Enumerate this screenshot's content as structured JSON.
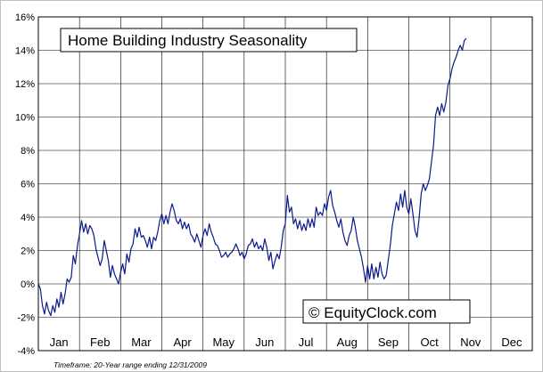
{
  "chart_data": {
    "type": "line",
    "title": "Home Building Industry Seasonality",
    "watermark": "© EquityClock.com",
    "footnote": "Timeframe: 20-Year range ending 12/31/2009",
    "xlabel": "",
    "ylabel": "",
    "ylim": [
      -4,
      16
    ],
    "y_ticks": [
      "-4%",
      "-2%",
      "0%",
      "2%",
      "4%",
      "6%",
      "8%",
      "10%",
      "12%",
      "14%",
      "16%"
    ],
    "x_ticks": [
      "Jan",
      "Feb",
      "Mar",
      "Apr",
      "May",
      "Jun",
      "Jul",
      "Aug",
      "Sep",
      "Oct",
      "Nov",
      "Dec"
    ],
    "grid": true,
    "line_color": "#0a1a8c",
    "series": [
      {
        "values": [
          [
            0.0,
            0.0
          ],
          [
            0.05,
            -0.3
          ],
          [
            0.1,
            -1.3
          ],
          [
            0.15,
            -1.8
          ],
          [
            0.2,
            -1.1
          ],
          [
            0.25,
            -1.6
          ],
          [
            0.3,
            -1.9
          ],
          [
            0.35,
            -1.3
          ],
          [
            0.4,
            -1.7
          ],
          [
            0.45,
            -0.9
          ],
          [
            0.5,
            -1.4
          ],
          [
            0.55,
            -0.5
          ],
          [
            0.6,
            -1.2
          ],
          [
            0.65,
            -0.6
          ],
          [
            0.7,
            0.3
          ],
          [
            0.75,
            0.1
          ],
          [
            0.8,
            0.4
          ],
          [
            0.85,
            1.7
          ],
          [
            0.9,
            1.2
          ],
          [
            0.95,
            2.3
          ],
          [
            1.0,
            3.0
          ],
          [
            1.05,
            3.8
          ],
          [
            1.1,
            3.1
          ],
          [
            1.15,
            3.6
          ],
          [
            1.2,
            3.0
          ],
          [
            1.25,
            3.5
          ],
          [
            1.3,
            3.3
          ],
          [
            1.35,
            2.9
          ],
          [
            1.4,
            2.1
          ],
          [
            1.45,
            1.6
          ],
          [
            1.5,
            1.1
          ],
          [
            1.55,
            1.5
          ],
          [
            1.6,
            2.6
          ],
          [
            1.65,
            2.0
          ],
          [
            1.7,
            1.4
          ],
          [
            1.75,
            0.4
          ],
          [
            1.8,
            1.1
          ],
          [
            1.85,
            0.6
          ],
          [
            1.9,
            0.3
          ],
          [
            1.95,
            0.0
          ],
          [
            2.0,
            0.7
          ],
          [
            2.05,
            1.2
          ],
          [
            2.1,
            0.6
          ],
          [
            2.15,
            1.8
          ],
          [
            2.2,
            1.3
          ],
          [
            2.25,
            2.1
          ],
          [
            2.3,
            2.4
          ],
          [
            2.35,
            3.3
          ],
          [
            2.4,
            2.8
          ],
          [
            2.45,
            3.4
          ],
          [
            2.5,
            2.8
          ],
          [
            2.55,
            2.9
          ],
          [
            2.6,
            2.6
          ],
          [
            2.65,
            2.2
          ],
          [
            2.7,
            2.8
          ],
          [
            2.75,
            2.1
          ],
          [
            2.8,
            2.8
          ],
          [
            2.85,
            2.6
          ],
          [
            2.9,
            3.1
          ],
          [
            2.95,
            3.8
          ],
          [
            3.0,
            4.2
          ],
          [
            3.05,
            3.6
          ],
          [
            3.1,
            4.1
          ],
          [
            3.15,
            3.6
          ],
          [
            3.2,
            4.3
          ],
          [
            3.25,
            4.8
          ],
          [
            3.3,
            4.4
          ],
          [
            3.35,
            3.8
          ],
          [
            3.4,
            3.6
          ],
          [
            3.45,
            3.9
          ],
          [
            3.5,
            3.3
          ],
          [
            3.55,
            3.7
          ],
          [
            3.6,
            3.3
          ],
          [
            3.65,
            3.6
          ],
          [
            3.7,
            3.0
          ],
          [
            3.75,
            2.8
          ],
          [
            3.8,
            2.5
          ],
          [
            3.85,
            3.0
          ],
          [
            3.9,
            2.6
          ],
          [
            3.95,
            2.2
          ],
          [
            4.0,
            2.9
          ],
          [
            4.05,
            3.3
          ],
          [
            4.1,
            2.9
          ],
          [
            4.15,
            3.6
          ],
          [
            4.2,
            3.1
          ],
          [
            4.25,
            2.8
          ],
          [
            4.3,
            2.4
          ],
          [
            4.35,
            2.3
          ],
          [
            4.4,
            2.0
          ],
          [
            4.45,
            1.6
          ],
          [
            4.5,
            1.7
          ],
          [
            4.55,
            1.9
          ],
          [
            4.6,
            1.6
          ],
          [
            4.65,
            1.8
          ],
          [
            4.7,
            1.9
          ],
          [
            4.75,
            2.1
          ],
          [
            4.8,
            2.4
          ],
          [
            4.85,
            2.1
          ],
          [
            4.9,
            1.7
          ],
          [
            4.95,
            1.9
          ],
          [
            5.0,
            1.5
          ],
          [
            5.05,
            1.8
          ],
          [
            5.1,
            2.3
          ],
          [
            5.15,
            2.4
          ],
          [
            5.2,
            2.7
          ],
          [
            5.25,
            2.2
          ],
          [
            5.3,
            2.5
          ],
          [
            5.35,
            2.1
          ],
          [
            5.4,
            2.3
          ],
          [
            5.45,
            2.0
          ],
          [
            5.5,
            2.7
          ],
          [
            5.55,
            2.2
          ],
          [
            5.6,
            1.4
          ],
          [
            5.65,
            1.9
          ],
          [
            5.7,
            0.9
          ],
          [
            5.75,
            1.4
          ],
          [
            5.8,
            1.8
          ],
          [
            5.85,
            1.5
          ],
          [
            5.9,
            2.2
          ],
          [
            5.95,
            3.2
          ],
          [
            6.0,
            3.6
          ],
          [
            6.05,
            5.3
          ],
          [
            6.1,
            4.3
          ],
          [
            6.15,
            4.6
          ],
          [
            6.2,
            3.6
          ],
          [
            6.25,
            3.9
          ],
          [
            6.3,
            3.3
          ],
          [
            6.35,
            3.8
          ],
          [
            6.4,
            3.2
          ],
          [
            6.45,
            3.6
          ],
          [
            6.5,
            3.2
          ],
          [
            6.55,
            3.9
          ],
          [
            6.6,
            3.4
          ],
          [
            6.65,
            3.9
          ],
          [
            6.7,
            3.4
          ],
          [
            6.75,
            4.6
          ],
          [
            6.8,
            4.1
          ],
          [
            6.85,
            4.3
          ],
          [
            6.9,
            4.1
          ],
          [
            6.95,
            4.8
          ],
          [
            7.0,
            4.4
          ],
          [
            7.05,
            5.2
          ],
          [
            7.1,
            5.6
          ],
          [
            7.15,
            4.7
          ],
          [
            7.2,
            4.3
          ],
          [
            7.25,
            3.8
          ],
          [
            7.3,
            3.4
          ],
          [
            7.35,
            3.9
          ],
          [
            7.4,
            3.1
          ],
          [
            7.45,
            2.6
          ],
          [
            7.5,
            2.3
          ],
          [
            7.55,
            2.9
          ],
          [
            7.6,
            3.2
          ],
          [
            7.65,
            4.0
          ],
          [
            7.7,
            3.4
          ],
          [
            7.75,
            2.6
          ],
          [
            7.8,
            2.1
          ],
          [
            7.85,
            1.6
          ],
          [
            7.9,
            0.9
          ],
          [
            7.95,
            0.1
          ],
          [
            8.0,
            1.1
          ],
          [
            8.05,
            0.3
          ],
          [
            8.1,
            1.2
          ],
          [
            8.15,
            0.3
          ],
          [
            8.2,
            1.0
          ],
          [
            8.25,
            0.4
          ],
          [
            8.3,
            1.3
          ],
          [
            8.35,
            0.6
          ],
          [
            8.4,
            0.3
          ],
          [
            8.45,
            0.5
          ],
          [
            8.5,
            1.4
          ],
          [
            8.55,
            2.3
          ],
          [
            8.6,
            3.5
          ],
          [
            8.65,
            4.2
          ],
          [
            8.7,
            4.9
          ],
          [
            8.75,
            4.4
          ],
          [
            8.8,
            5.4
          ],
          [
            8.85,
            4.6
          ],
          [
            8.9,
            5.6
          ],
          [
            8.95,
            4.6
          ],
          [
            9.0,
            4.2
          ],
          [
            9.05,
            5.1
          ],
          [
            9.1,
            4.2
          ],
          [
            9.15,
            3.2
          ],
          [
            9.2,
            2.8
          ],
          [
            9.25,
            3.9
          ],
          [
            9.3,
            5.4
          ],
          [
            9.35,
            6.0
          ],
          [
            9.4,
            5.6
          ],
          [
            9.45,
            5.9
          ],
          [
            9.5,
            6.3
          ],
          [
            9.55,
            7.3
          ],
          [
            9.6,
            8.3
          ],
          [
            9.65,
            10.1
          ],
          [
            9.7,
            10.6
          ],
          [
            9.75,
            10.1
          ],
          [
            9.8,
            10.8
          ],
          [
            9.85,
            10.3
          ],
          [
            9.9,
            10.9
          ],
          [
            9.95,
            11.9
          ],
          [
            10.0,
            12.3
          ],
          [
            10.05,
            12.9
          ],
          [
            10.1,
            13.3
          ],
          [
            10.15,
            13.6
          ],
          [
            10.2,
            14.0
          ],
          [
            10.25,
            14.3
          ],
          [
            10.3,
            14.0
          ],
          [
            10.35,
            14.6
          ],
          [
            10.4,
            14.7
          ]
        ]
      }
    ]
  }
}
